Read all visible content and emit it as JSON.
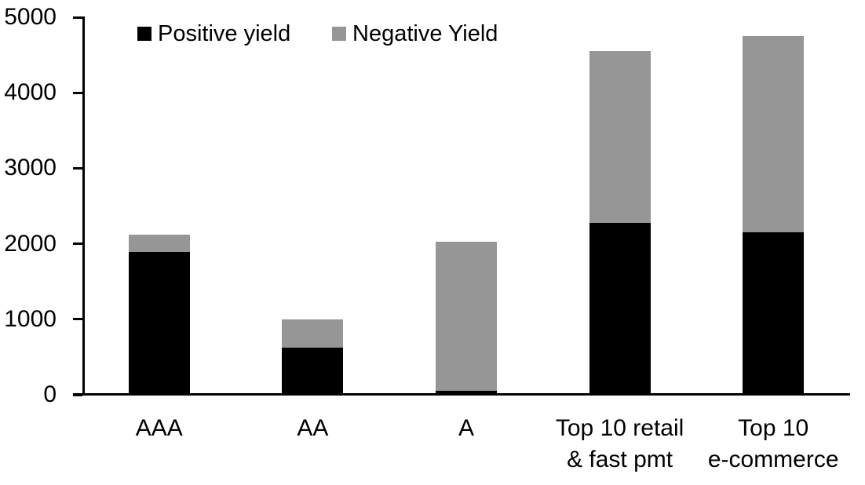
{
  "chart_data": {
    "type": "bar",
    "stacked": true,
    "title": "",
    "categories": [
      "AAA",
      "AA",
      "A",
      "Top 10 retail & fast pmt",
      "Top 10 e-commerce"
    ],
    "category_lines": [
      [
        "AAA"
      ],
      [
        "AA"
      ],
      [
        "A"
      ],
      [
        "Top 10 retail",
        "& fast pmt"
      ],
      [
        "Top 10",
        "e-commerce"
      ]
    ],
    "series": [
      {
        "name": "Positive yield",
        "color": "#000000",
        "values": [
          1890,
          620,
          50,
          2280,
          2150
        ]
      },
      {
        "name": "Negative Yield",
        "color": "#969696",
        "values": [
          230,
          380,
          1980,
          2270,
          2600
        ]
      }
    ],
    "stack_totals": [
      2120,
      1000,
      2030,
      4550,
      4750
    ],
    "xlabel": "",
    "ylabel": "",
    "ylim": [
      0,
      5000
    ],
    "yticks": [
      0,
      1000,
      2000,
      3000,
      4000,
      5000
    ],
    "grid": false,
    "legend_position": "top",
    "axis_color": "#000000",
    "background_color": "#ffffff"
  }
}
